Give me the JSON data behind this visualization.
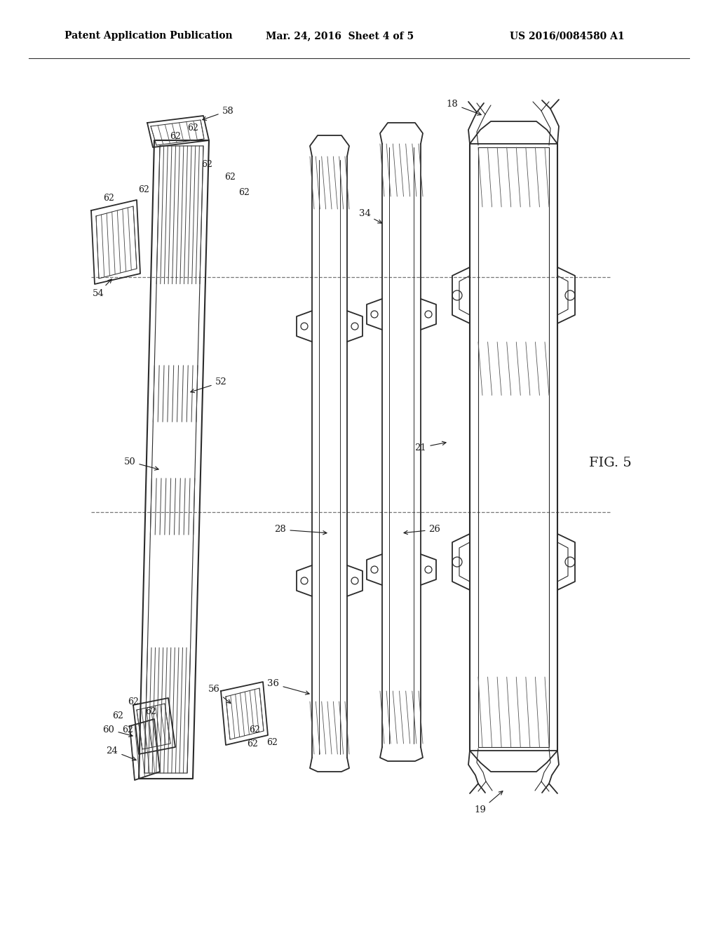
{
  "header_left": "Patent Application Publication",
  "header_mid": "Mar. 24, 2016  Sheet 4 of 5",
  "header_right": "US 2016/0084580 A1",
  "figure_label": "FIG. 5",
  "bg_color": "#ffffff",
  "line_color": "#2a2a2a",
  "dashed_color": "#777777"
}
